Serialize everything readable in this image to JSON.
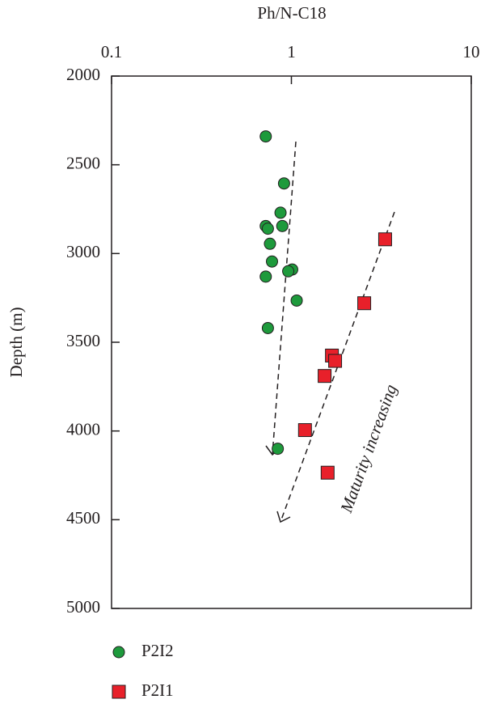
{
  "chart_data": {
    "type": "scatter",
    "title": "Ph/N-C18",
    "y_label": "Depth (m)",
    "annotation": "Maturity increasing",
    "x_log": true,
    "y_inverted": true,
    "xlim": [
      0.1,
      10
    ],
    "xticks": [
      0.1,
      1,
      10
    ],
    "ylim": [
      2000,
      5000
    ],
    "yticks": [
      2000,
      2500,
      3000,
      3500,
      4000,
      4500,
      5000
    ],
    "series": [
      {
        "name": "P2I2",
        "color": "#1e9a3c",
        "marker": "circle",
        "x": [
          0.72,
          0.91,
          0.87,
          0.72,
          0.89,
          0.74,
          0.76,
          0.78,
          1.01,
          0.96,
          0.72,
          1.07,
          0.74,
          0.84
        ],
        "values": [
          2340,
          2605,
          2770,
          2845,
          2845,
          2860,
          2945,
          3045,
          3090,
          3100,
          3130,
          3265,
          3420,
          4100
        ]
      },
      {
        "name": "P2I1",
        "color": "#e8202a",
        "marker": "square",
        "x": [
          3.32,
          2.54,
          1.68,
          1.75,
          1.53,
          1.19,
          1.59
        ],
        "values": [
          2920,
          3280,
          3575,
          3605,
          3690,
          3995,
          4235
        ]
      }
    ]
  }
}
